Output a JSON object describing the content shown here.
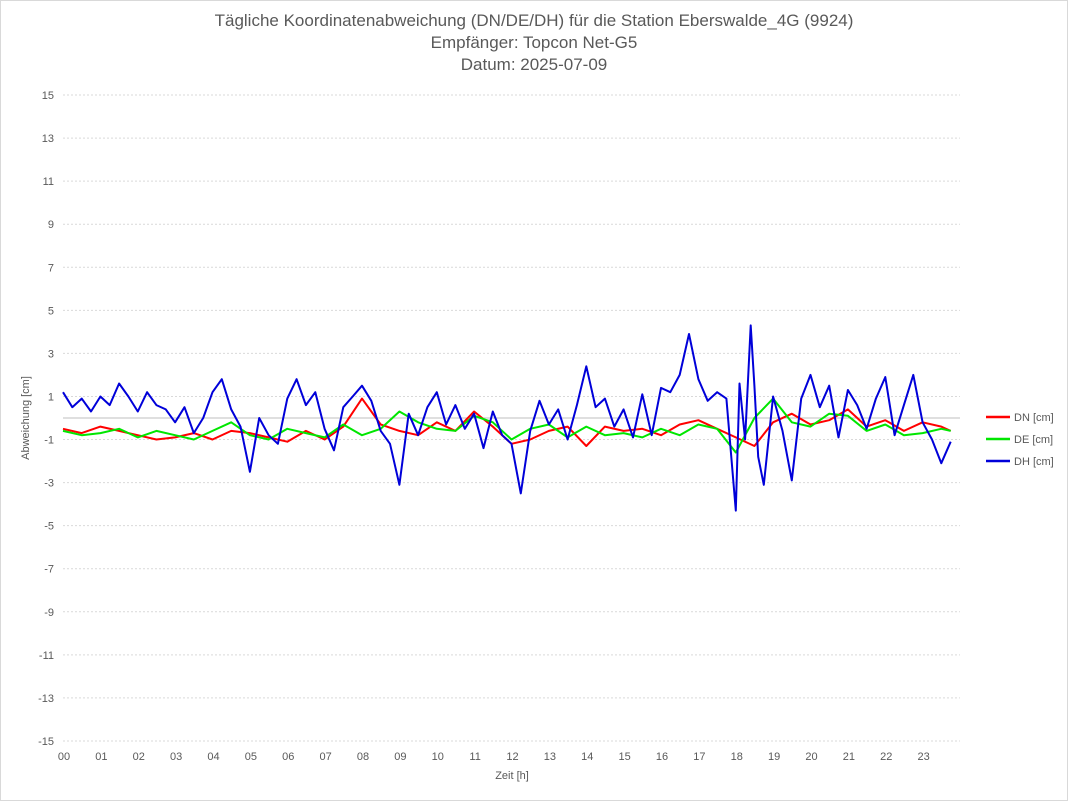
{
  "chart_data": {
    "type": "line",
    "title_lines": [
      "Tägliche Koordinatenabweichung (DN/DE/DH) für die Station Eberswalde_4G (9924)",
      "Empfänger: Topcon Net-G5",
      "Datum: 2025-07-09"
    ],
    "xlabel": "Zeit [h]",
    "ylabel": "Abweichung [cm]",
    "xlim": [
      0,
      24
    ],
    "ylim": [
      -15,
      15
    ],
    "x_ticks": [
      "00",
      "01",
      "02",
      "03",
      "04",
      "05",
      "06",
      "07",
      "08",
      "09",
      "10",
      "11",
      "12",
      "13",
      "14",
      "15",
      "16",
      "17",
      "18",
      "19",
      "20",
      "21",
      "22",
      "23"
    ],
    "y_ticks": [
      15,
      13,
      11,
      9,
      7,
      5,
      3,
      1,
      -1,
      -3,
      -5,
      -7,
      -9,
      -11,
      -13,
      -15
    ],
    "grid": "horizontal dotted",
    "legend_position": "right",
    "series": [
      {
        "name": "DN [cm]",
        "color": "#ff0000",
        "x": [
          0.0,
          0.5,
          1.0,
          1.5,
          2.0,
          2.5,
          3.0,
          3.5,
          4.0,
          4.5,
          5.0,
          5.5,
          6.0,
          6.5,
          7.0,
          7.5,
          8.0,
          8.5,
          9.0,
          9.5,
          10.0,
          10.5,
          11.0,
          11.5,
          12.0,
          12.5,
          13.0,
          13.5,
          14.0,
          14.5,
          15.0,
          15.5,
          16.0,
          16.5,
          17.0,
          17.5,
          18.0,
          18.5,
          19.0,
          19.5,
          20.0,
          20.5,
          21.0,
          21.5,
          22.0,
          22.5,
          23.0,
          23.5,
          23.75
        ],
        "y": [
          -0.5,
          -0.7,
          -0.4,
          -0.6,
          -0.8,
          -1.0,
          -0.9,
          -0.7,
          -1.0,
          -0.6,
          -0.7,
          -0.9,
          -1.1,
          -0.6,
          -1.0,
          -0.4,
          0.9,
          -0.3,
          -0.6,
          -0.8,
          -0.2,
          -0.6,
          0.3,
          -0.4,
          -1.2,
          -1.0,
          -0.6,
          -0.4,
          -1.3,
          -0.4,
          -0.6,
          -0.5,
          -0.8,
          -0.3,
          -0.1,
          -0.5,
          -0.9,
          -1.3,
          -0.2,
          0.2,
          -0.3,
          -0.1,
          0.4,
          -0.4,
          -0.1,
          -0.6,
          -0.2,
          -0.4,
          -0.6
        ]
      },
      {
        "name": "DE [cm]",
        "color": "#00e600",
        "x": [
          0.0,
          0.5,
          1.0,
          1.5,
          2.0,
          2.5,
          3.0,
          3.5,
          4.0,
          4.5,
          5.0,
          5.5,
          6.0,
          6.5,
          7.0,
          7.5,
          8.0,
          8.5,
          9.0,
          9.5,
          10.0,
          10.5,
          11.0,
          11.5,
          12.0,
          12.5,
          13.0,
          13.5,
          14.0,
          14.5,
          15.0,
          15.5,
          16.0,
          16.5,
          17.0,
          17.5,
          18.0,
          18.5,
          19.0,
          19.5,
          20.0,
          20.5,
          21.0,
          21.5,
          22.0,
          22.5,
          23.0,
          23.5,
          23.75
        ],
        "y": [
          -0.6,
          -0.8,
          -0.7,
          -0.5,
          -0.9,
          -0.6,
          -0.8,
          -1.0,
          -0.6,
          -0.2,
          -0.8,
          -1.0,
          -0.5,
          -0.7,
          -0.9,
          -0.3,
          -0.8,
          -0.5,
          0.3,
          -0.2,
          -0.5,
          -0.6,
          0.1,
          -0.2,
          -1.0,
          -0.5,
          -0.3,
          -0.9,
          -0.4,
          -0.8,
          -0.7,
          -0.9,
          -0.5,
          -0.8,
          -0.3,
          -0.5,
          -1.6,
          0.0,
          0.9,
          -0.2,
          -0.4,
          0.2,
          0.1,
          -0.6,
          -0.3,
          -0.8,
          -0.7,
          -0.5,
          -0.6
        ]
      },
      {
        "name": "DH [cm]",
        "color": "#0000d9",
        "x": [
          0.0,
          0.25,
          0.5,
          0.75,
          1.0,
          1.25,
          1.5,
          1.75,
          2.0,
          2.25,
          2.5,
          2.75,
          3.0,
          3.25,
          3.5,
          3.75,
          4.0,
          4.25,
          4.5,
          4.75,
          5.0,
          5.25,
          5.5,
          5.75,
          6.0,
          6.25,
          6.5,
          6.75,
          7.0,
          7.25,
          7.5,
          7.75,
          8.0,
          8.25,
          8.5,
          8.75,
          9.0,
          9.25,
          9.5,
          9.75,
          10.0,
          10.25,
          10.5,
          10.75,
          11.0,
          11.25,
          11.5,
          11.75,
          12.0,
          12.25,
          12.5,
          12.75,
          13.0,
          13.25,
          13.5,
          13.75,
          14.0,
          14.25,
          14.5,
          14.75,
          15.0,
          15.25,
          15.5,
          15.75,
          16.0,
          16.25,
          16.5,
          16.75,
          17.0,
          17.25,
          17.5,
          17.75,
          18.0,
          18.1,
          18.25,
          18.4,
          18.5,
          18.6,
          18.75,
          19.0,
          19.25,
          19.5,
          19.75,
          20.0,
          20.25,
          20.5,
          20.75,
          21.0,
          21.25,
          21.5,
          21.75,
          22.0,
          22.25,
          22.5,
          22.75,
          23.0,
          23.25,
          23.5,
          23.75
        ],
        "y": [
          1.2,
          0.5,
          0.9,
          0.3,
          1.0,
          0.6,
          1.6,
          1.0,
          0.3,
          1.2,
          0.6,
          0.4,
          -0.2,
          0.5,
          -0.7,
          0.0,
          1.2,
          1.8,
          0.4,
          -0.4,
          -2.5,
          0.0,
          -0.8,
          -1.2,
          0.9,
          1.8,
          0.6,
          1.2,
          -0.5,
          -1.5,
          0.5,
          1.0,
          1.5,
          0.8,
          -0.6,
          -1.2,
          -3.1,
          0.2,
          -0.8,
          0.5,
          1.2,
          -0.3,
          0.6,
          -0.5,
          0.2,
          -1.4,
          0.3,
          -0.8,
          -1.2,
          -3.5,
          -0.6,
          0.8,
          -0.3,
          0.4,
          -1.0,
          0.6,
          2.4,
          0.5,
          0.9,
          -0.4,
          0.4,
          -0.9,
          1.1,
          -0.8,
          1.4,
          1.2,
          2.0,
          3.9,
          1.8,
          0.8,
          1.2,
          0.9,
          -4.3,
          1.6,
          -1.0,
          4.3,
          1.5,
          -1.8,
          -3.1,
          1.0,
          -0.6,
          -2.9,
          0.9,
          2.0,
          0.5,
          1.5,
          -0.9,
          1.3,
          0.6,
          -0.5,
          0.9,
          1.9,
          -0.8,
          0.6,
          2.0,
          -0.2,
          -1.0,
          -2.1,
          -1.1
        ]
      }
    ]
  }
}
